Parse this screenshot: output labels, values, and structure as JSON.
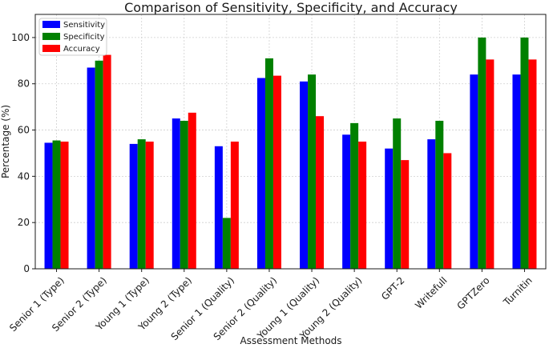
{
  "chart_data": {
    "type": "bar",
    "title": "Comparison of Sensitivity, Specificity, and Accuracy",
    "xlabel": "Assessment Methods",
    "ylabel": "Percentage (%)",
    "ylim": [
      0,
      110
    ],
    "yticks": [
      0,
      20,
      40,
      60,
      80,
      100
    ],
    "grid": true,
    "legend_position": "top-left",
    "categories": [
      "Senior 1 (Type)",
      "Senior 2 (Type)",
      "Young 1 (Type)",
      "Young 2 (Type)",
      "Senior 1 (Quality)",
      "Senior 2 (Quality)",
      "Young 1 (Quality)",
      "Young 2 (Quality)",
      "GPT-2",
      "Writefull",
      "GPTZero",
      "Turnitin"
    ],
    "series": [
      {
        "name": "Sensitivity",
        "color": "#0000ff",
        "values": [
          54.5,
          87,
          54,
          65,
          53,
          82.5,
          81,
          58,
          52,
          56,
          84,
          84
        ]
      },
      {
        "name": "Specificity",
        "color": "#008000",
        "values": [
          55.5,
          90,
          56,
          64,
          22,
          91,
          84,
          63,
          65,
          64,
          100,
          100
        ]
      },
      {
        "name": "Accuracy",
        "color": "#ff0000",
        "values": [
          55,
          92.5,
          55,
          67.5,
          55,
          83.5,
          66,
          55,
          47,
          50,
          90.5,
          90.5
        ]
      }
    ]
  }
}
